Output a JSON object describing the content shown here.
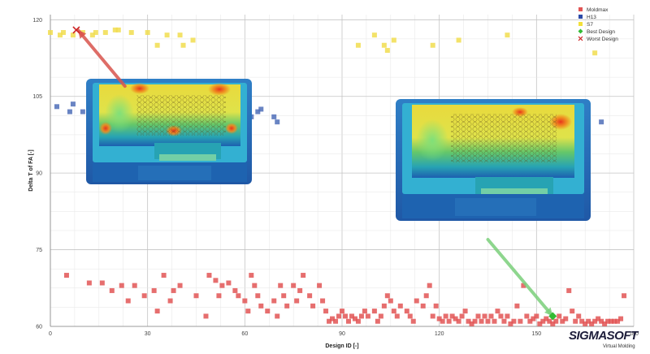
{
  "chart_data": {
    "type": "scatter",
    "xlabel": "Design ID [-]",
    "ylabel": "Delta T of FA [-]",
    "xlim": [
      0,
      180
    ],
    "ylim": [
      60,
      121
    ],
    "x_ticks": [
      "0",
      "30",
      "60",
      "90",
      "120",
      "150",
      "180"
    ],
    "y_ticks": [
      "60",
      "75",
      "90",
      "105",
      "120"
    ],
    "grid": true,
    "legend_position": "top-right",
    "series": [
      {
        "name": "Moldmax",
        "color": "#e25555",
        "marker": "square",
        "points": [
          [
            5,
            70
          ],
          [
            12,
            68.5
          ],
          [
            16,
            68.5
          ],
          [
            19,
            67
          ],
          [
            22,
            68
          ],
          [
            24,
            65
          ],
          [
            26,
            68
          ],
          [
            29,
            66
          ],
          [
            32,
            67
          ],
          [
            33,
            63
          ],
          [
            35,
            70
          ],
          [
            37,
            65
          ],
          [
            38,
            67
          ],
          [
            40,
            68
          ],
          [
            45,
            66
          ],
          [
            48,
            62
          ],
          [
            49,
            70
          ],
          [
            51,
            69
          ],
          [
            52,
            66
          ],
          [
            53,
            68
          ],
          [
            55,
            68.5
          ],
          [
            57,
            67
          ],
          [
            58,
            66
          ],
          [
            60,
            65
          ],
          [
            61,
            63
          ],
          [
            62,
            70
          ],
          [
            63,
            68
          ],
          [
            64,
            66
          ],
          [
            65,
            64
          ],
          [
            67,
            63
          ],
          [
            69,
            65
          ],
          [
            70,
            62
          ],
          [
            71,
            68
          ],
          [
            72,
            66
          ],
          [
            73,
            64
          ],
          [
            75,
            68
          ],
          [
            76,
            65
          ],
          [
            77,
            67
          ],
          [
            78,
            70
          ],
          [
            80,
            66
          ],
          [
            81,
            64
          ],
          [
            83,
            68
          ],
          [
            84,
            65
          ],
          [
            85,
            63
          ],
          [
            86,
            61
          ],
          [
            87,
            61.5
          ],
          [
            88,
            61
          ],
          [
            89,
            62
          ],
          [
            90,
            63
          ],
          [
            91,
            62
          ],
          [
            92,
            61
          ],
          [
            93,
            62
          ],
          [
            94,
            61.5
          ],
          [
            95,
            61
          ],
          [
            96,
            62
          ],
          [
            97,
            63
          ],
          [
            98,
            62
          ],
          [
            100,
            63
          ],
          [
            101,
            61
          ],
          [
            102,
            62
          ],
          [
            103,
            64
          ],
          [
            104,
            66
          ],
          [
            105,
            65
          ],
          [
            106,
            63
          ],
          [
            107,
            62
          ],
          [
            108,
            64
          ],
          [
            110,
            63
          ],
          [
            111,
            62
          ],
          [
            112,
            61
          ],
          [
            113,
            65
          ],
          [
            115,
            64
          ],
          [
            116,
            66
          ],
          [
            117,
            68
          ],
          [
            118,
            62
          ],
          [
            119,
            64
          ],
          [
            120,
            61.5
          ],
          [
            121,
            61
          ],
          [
            122,
            62
          ],
          [
            123,
            61
          ],
          [
            124,
            62
          ],
          [
            125,
            61.5
          ],
          [
            126,
            61
          ],
          [
            127,
            62
          ],
          [
            128,
            63
          ],
          [
            129,
            61
          ],
          [
            130,
            60.5
          ],
          [
            131,
            61
          ],
          [
            132,
            62
          ],
          [
            133,
            61
          ],
          [
            134,
            62
          ],
          [
            135,
            61
          ],
          [
            136,
            62
          ],
          [
            137,
            61
          ],
          [
            138,
            63
          ],
          [
            139,
            62
          ],
          [
            140,
            61
          ],
          [
            141,
            62
          ],
          [
            142,
            60.5
          ],
          [
            143,
            61
          ],
          [
            144,
            64
          ],
          [
            145,
            61
          ],
          [
            146,
            68
          ],
          [
            147,
            62
          ],
          [
            148,
            61
          ],
          [
            149,
            61.5
          ],
          [
            150,
            62
          ],
          [
            151,
            60.5
          ],
          [
            152,
            61
          ],
          [
            153,
            61.5
          ],
          [
            154,
            61
          ],
          [
            155,
            60.5
          ],
          [
            156,
            61
          ],
          [
            157,
            62
          ],
          [
            158,
            61
          ],
          [
            159,
            61.5
          ],
          [
            160,
            67
          ],
          [
            161,
            63
          ],
          [
            162,
            61
          ],
          [
            163,
            62
          ],
          [
            164,
            61
          ],
          [
            165,
            60.5
          ],
          [
            166,
            61
          ],
          [
            167,
            60.5
          ],
          [
            168,
            61
          ],
          [
            169,
            61.5
          ],
          [
            170,
            61
          ],
          [
            171,
            60.5
          ],
          [
            172,
            61
          ],
          [
            173,
            61
          ],
          [
            174,
            61
          ],
          [
            175,
            61
          ],
          [
            176,
            61.5
          ],
          [
            177,
            66
          ]
        ]
      },
      {
        "name": "H13",
        "color": "#4f6fb8",
        "marker": "square",
        "points": [
          [
            2,
            103
          ],
          [
            6,
            102
          ],
          [
            7,
            103.5
          ],
          [
            10,
            102
          ],
          [
            13,
            102
          ],
          [
            15,
            101
          ],
          [
            20,
            102
          ],
          [
            24,
            101
          ],
          [
            26,
            102
          ],
          [
            29,
            103
          ],
          [
            36,
            101
          ],
          [
            40,
            100
          ],
          [
            45,
            101
          ],
          [
            60,
            102
          ],
          [
            62,
            101
          ],
          [
            64,
            102
          ],
          [
            65,
            102.5
          ],
          [
            69,
            101
          ],
          [
            70,
            100
          ],
          [
            120,
            102.5
          ],
          [
            122,
            103
          ],
          [
            124,
            104
          ],
          [
            140,
            102
          ],
          [
            142,
            101
          ],
          [
            145,
            101
          ],
          [
            160,
            100
          ],
          [
            165,
            101
          ],
          [
            170,
            100
          ]
        ]
      },
      {
        "name": "S7",
        "color": "#f1dd4f",
        "marker": "square",
        "points": [
          [
            0,
            117.5
          ],
          [
            3,
            117
          ],
          [
            4,
            117.5
          ],
          [
            7,
            117
          ],
          [
            10,
            117.5
          ],
          [
            13,
            117
          ],
          [
            14,
            117.5
          ],
          [
            17,
            117.5
          ],
          [
            20,
            118
          ],
          [
            21,
            118
          ],
          [
            25,
            117.5
          ],
          [
            30,
            117.5
          ],
          [
            33,
            115
          ],
          [
            36,
            117
          ],
          [
            40,
            117
          ],
          [
            41,
            115
          ],
          [
            44,
            116
          ],
          [
            95,
            115
          ],
          [
            100,
            117
          ],
          [
            103,
            115
          ],
          [
            104,
            114
          ],
          [
            106,
            116
          ],
          [
            118,
            115
          ],
          [
            126,
            116
          ],
          [
            141,
            117
          ],
          [
            168,
            113.5
          ]
        ]
      }
    ],
    "best_design": {
      "name": "Best Design",
      "color": "#33bb33",
      "x": 155,
      "y": 62
    },
    "worst_design": {
      "name": "Worst Design",
      "color": "#cc2222",
      "x": 8,
      "y": 118
    },
    "annotation_arrows": [
      {
        "color": "#d9544d",
        "from": [
          23,
          107
        ],
        "to": [
          8.5,
          118
        ]
      },
      {
        "color": "#7bd07b",
        "from": [
          135,
          77
        ],
        "to": [
          155,
          62
        ]
      }
    ]
  },
  "legend": {
    "items": [
      {
        "label": "Moldmax",
        "color": "#e25555",
        "shape": "square"
      },
      {
        "label": "H13",
        "color": "#2c4aa8",
        "shape": "square"
      },
      {
        "label": "S7",
        "color": "#f3e03a",
        "shape": "square"
      },
      {
        "label": "Best Design",
        "color": "#33bb33",
        "shape": "diamond"
      },
      {
        "label": "Worst Design",
        "color": "#cc2222",
        "shape": "cross"
      }
    ]
  },
  "branding": {
    "logo_part1": "SIGMASOFT",
    "tagline": "Virtual Molding"
  }
}
